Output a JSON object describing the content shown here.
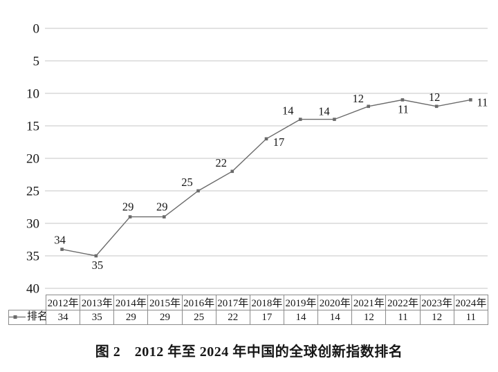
{
  "chart_data": {
    "type": "line",
    "title": "图 2　2012 年至 2024 年中国的全球创新指数排名",
    "categories": [
      "2012年",
      "2013年",
      "2014年",
      "2015年",
      "2016年",
      "2017年",
      "2018年",
      "2019年",
      "2020年",
      "2021年",
      "2022年",
      "2023年",
      "2024年"
    ],
    "series": [
      {
        "name": "排名",
        "values": [
          34,
          35,
          29,
          29,
          25,
          22,
          17,
          14,
          14,
          12,
          11,
          12,
          11
        ]
      }
    ],
    "xlabel": "",
    "ylabel": "",
    "ylim": [
      0,
      40
    ],
    "y_ticks": [
      0,
      5,
      10,
      15,
      20,
      25,
      30,
      35,
      40
    ],
    "y_axis_inverted": true,
    "grid": "horizontal",
    "data_labels_visible": true,
    "legend_position": "table-left",
    "marker": "square"
  },
  "table": {
    "legend_label": "排名",
    "legend_marker_icon": "line-with-square-marker-icon",
    "years": [
      "2012年",
      "2013年",
      "2014年",
      "2015年",
      "2016年",
      "2017年",
      "2018年",
      "2019年",
      "2020年",
      "2021年",
      "2022年",
      "2023年",
      "2024年"
    ],
    "values": [
      "34",
      "35",
      "29",
      "29",
      "25",
      "22",
      "17",
      "14",
      "14",
      "12",
      "11",
      "12",
      "11"
    ]
  },
  "caption": "图 2　2012 年至 2024 年中国的全球创新指数排名",
  "colors": {
    "line": "#6a6a6a",
    "marker": "#6a6a6a",
    "gridline": "#c6c6c6",
    "text": "#161616",
    "table_border": "#8a8a8a",
    "background": "#ffffff"
  }
}
